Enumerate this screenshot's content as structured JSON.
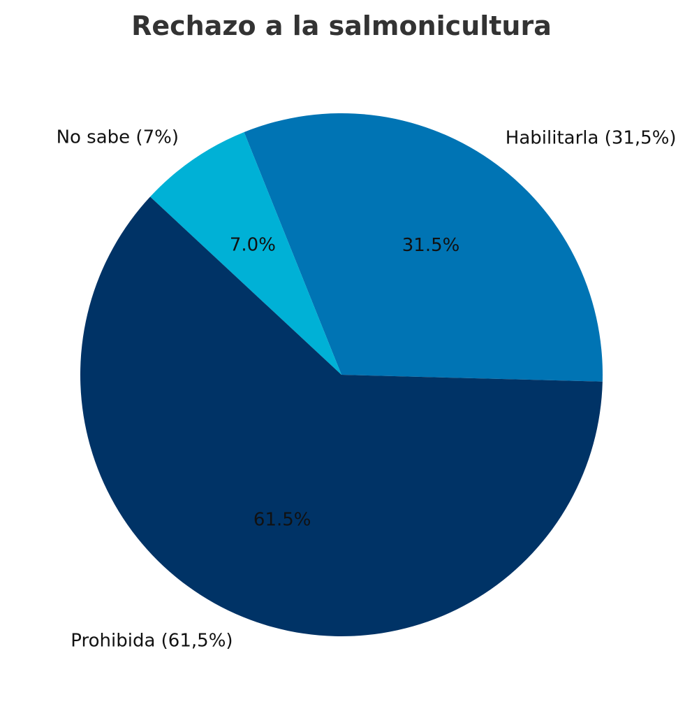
{
  "chart_data": {
    "type": "pie",
    "title": "Rechazo a la salmonicultura",
    "slices": [
      {
        "label": "Habilitarla (31,5%)",
        "value": 31.5,
        "pct_label": "31.5%",
        "color": "#0074B4"
      },
      {
        "label": "No sabe (7%)",
        "value": 7.0,
        "pct_label": "7.0%",
        "color": "#00B1D6"
      },
      {
        "label": "Prohibida (61,5%)",
        "value": 61.5,
        "pct_label": "61.5%",
        "color": "#003366"
      }
    ],
    "start_angle_deg": -1.5,
    "direction": "counterclockwise",
    "legend": "none"
  }
}
